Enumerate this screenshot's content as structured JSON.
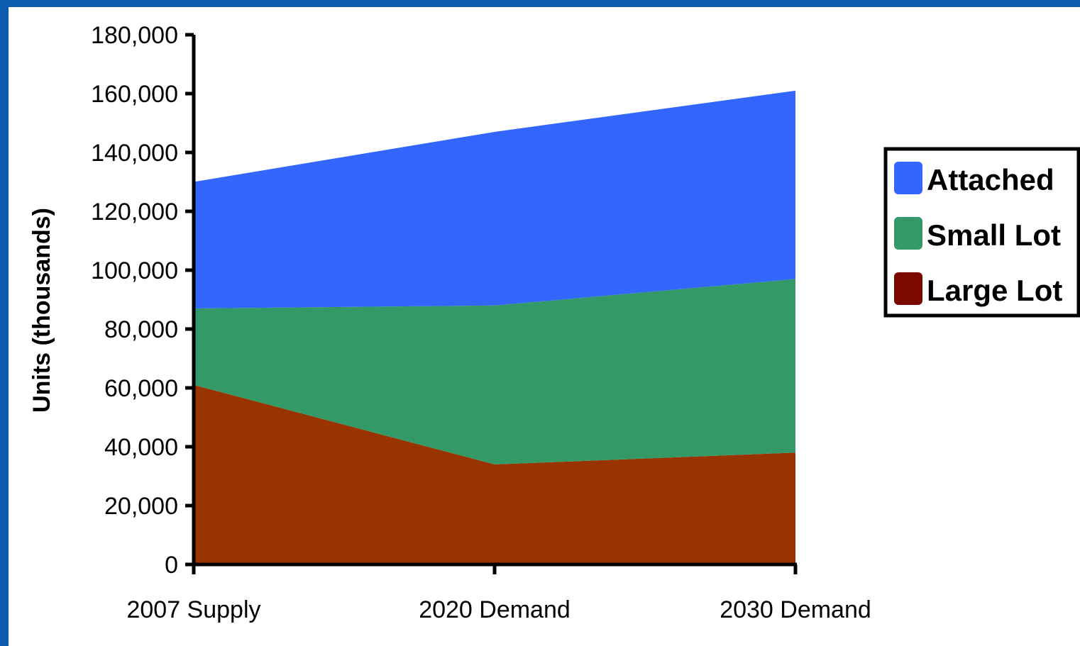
{
  "chart_data": {
    "type": "area",
    "stacked": true,
    "categories": [
      "2007 Supply",
      "2020 Demand",
      "2030 Demand"
    ],
    "series": [
      {
        "name": "Large Lot",
        "values": [
          61000,
          34000,
          38000
        ],
        "color": "#993300",
        "legend_color": "#7a0a00"
      },
      {
        "name": "Small Lot",
        "values": [
          26000,
          54000,
          59000
        ],
        "color": "#339966",
        "legend_color": "#339966"
      },
      {
        "name": "Attached",
        "values": [
          43000,
          59000,
          64000
        ],
        "color": "#3366ff",
        "legend_color": "#3366ff"
      }
    ],
    "ylabel": "Units (thousands)",
    "ylim": [
      0,
      180000
    ],
    "yticks": [
      0,
      20000,
      40000,
      60000,
      80000,
      100000,
      120000,
      140000,
      160000,
      180000
    ],
    "ytick_labels": [
      "0",
      "20,000",
      "40,000",
      "60,000",
      "80,000",
      "100,000",
      "120,000",
      "140,000",
      "160,000",
      "180,000"
    ],
    "legend_position": "right",
    "grid": false
  }
}
